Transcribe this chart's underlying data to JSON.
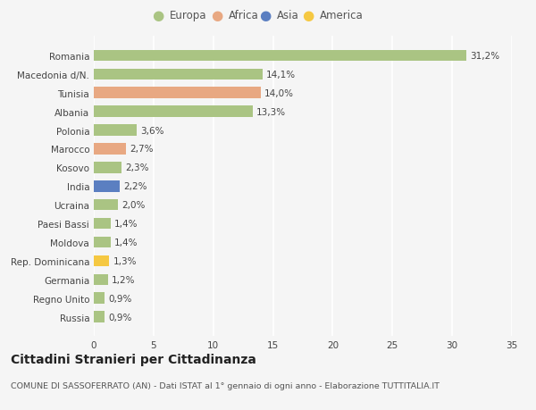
{
  "countries": [
    "Russia",
    "Regno Unito",
    "Germania",
    "Rep. Dominicana",
    "Moldova",
    "Paesi Bassi",
    "Ucraina",
    "India",
    "Kosovo",
    "Marocco",
    "Polonia",
    "Albania",
    "Tunisia",
    "Macedonia d/N.",
    "Romania"
  ],
  "values": [
    0.9,
    0.9,
    1.2,
    1.3,
    1.4,
    1.4,
    2.0,
    2.2,
    2.3,
    2.7,
    3.6,
    13.3,
    14.0,
    14.1,
    31.2
  ],
  "labels": [
    "0,9%",
    "0,9%",
    "1,2%",
    "1,3%",
    "1,4%",
    "1,4%",
    "2,0%",
    "2,2%",
    "2,3%",
    "2,7%",
    "3,6%",
    "13,3%",
    "14,0%",
    "14,1%",
    "31,2%"
  ],
  "continents": [
    "Europa",
    "Europa",
    "Europa",
    "America",
    "Europa",
    "Europa",
    "Europa",
    "Asia",
    "Europa",
    "Africa",
    "Europa",
    "Europa",
    "Africa",
    "Europa",
    "Europa"
  ],
  "continent_colors": {
    "Europa": "#aac483",
    "Africa": "#e8a882",
    "Asia": "#5b7fc1",
    "America": "#f5c842"
  },
  "legend_order": [
    "Europa",
    "Africa",
    "Asia",
    "America"
  ],
  "legend_colors": [
    "#aac483",
    "#e8a882",
    "#5b7fc1",
    "#f5c842"
  ],
  "title": "Cittadini Stranieri per Cittadinanza",
  "subtitle": "COMUNE DI SASSOFERRATO (AN) - Dati ISTAT al 1° gennaio di ogni anno - Elaborazione TUTTITALIA.IT",
  "xlim": [
    0,
    35
  ],
  "xticks": [
    0,
    5,
    10,
    15,
    20,
    25,
    30,
    35
  ],
  "bg_color": "#f5f5f5",
  "grid_color": "#ffffff",
  "bar_height": 0.6,
  "label_fontsize": 7.5,
  "title_fontsize": 10,
  "subtitle_fontsize": 6.8,
  "tick_fontsize": 7.5,
  "legend_fontsize": 8.5
}
